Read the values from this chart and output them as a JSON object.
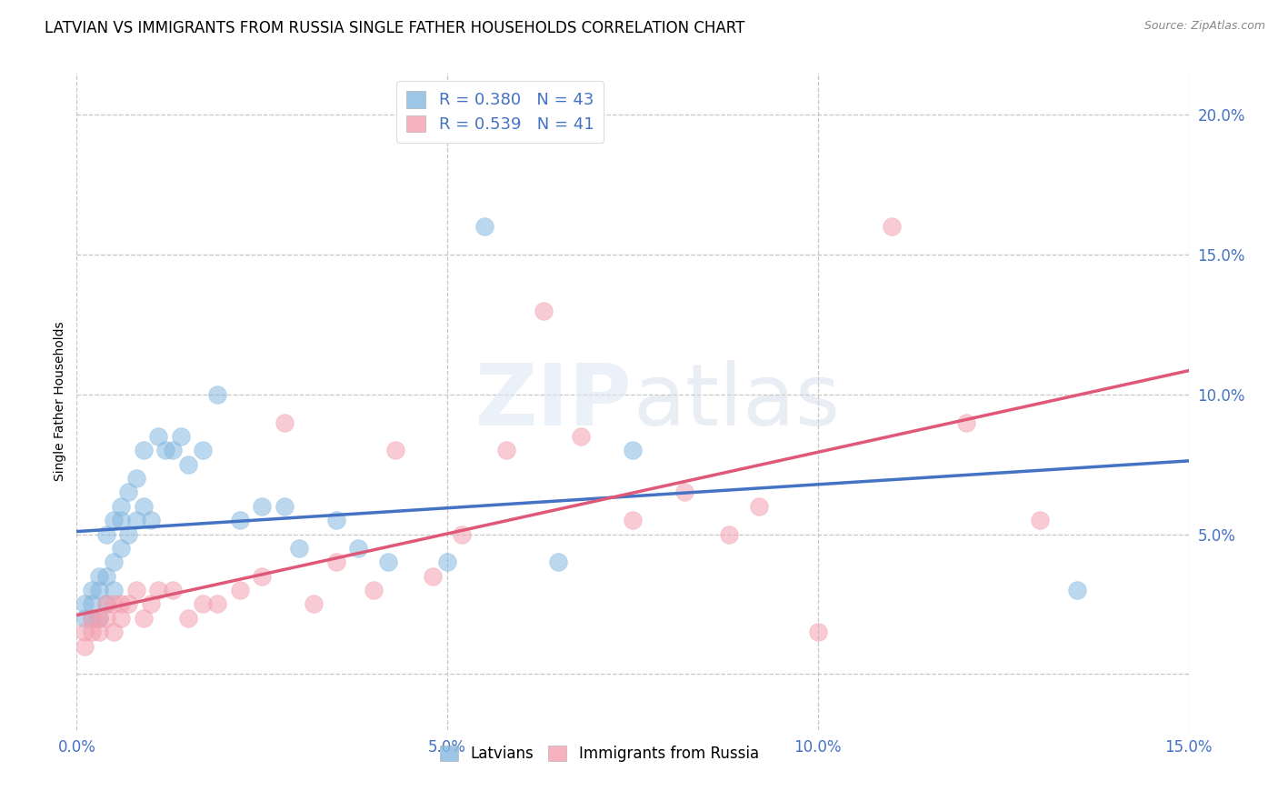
{
  "title": "LATVIAN VS IMMIGRANTS FROM RUSSIA SINGLE FATHER HOUSEHOLDS CORRELATION CHART",
  "source": "Source: ZipAtlas.com",
  "ylabel": "Single Father Households",
  "xlabel": "",
  "xlim": [
    0.0,
    0.15
  ],
  "ylim": [
    -0.02,
    0.215
  ],
  "yticks": [
    0.0,
    0.05,
    0.1,
    0.15,
    0.2
  ],
  "ytick_labels": [
    "",
    "5.0%",
    "10.0%",
    "15.0%",
    "20.0%"
  ],
  "xticks": [
    0.0,
    0.05,
    0.1,
    0.15
  ],
  "xtick_labels": [
    "0.0%",
    "5.0%",
    "10.0%",
    "15.0%"
  ],
  "latvian_color": "#85b8e0",
  "russia_color": "#f4a0b0",
  "latvian_line_color": "#4472c4",
  "russia_line_color": "#e05878",
  "legend_R_latvian": "R = 0.380",
  "legend_N_latvian": "N = 43",
  "legend_R_russia": "R = 0.539",
  "legend_N_russia": "N = 41",
  "background_color": "#ffffff",
  "grid_color": "#c0c0c0",
  "tick_color": "#4472c4",
  "title_fontsize": 12,
  "axis_label_fontsize": 10,
  "tick_fontsize": 12,
  "watermark_text": "ZIPatlas",
  "latvian_x": [
    0.001,
    0.001,
    0.002,
    0.002,
    0.002,
    0.003,
    0.003,
    0.003,
    0.004,
    0.004,
    0.004,
    0.005,
    0.005,
    0.005,
    0.006,
    0.006,
    0.006,
    0.007,
    0.007,
    0.008,
    0.008,
    0.009,
    0.009,
    0.01,
    0.011,
    0.012,
    0.013,
    0.014,
    0.015,
    0.017,
    0.019,
    0.022,
    0.025,
    0.028,
    0.03,
    0.035,
    0.038,
    0.042,
    0.05,
    0.055,
    0.065,
    0.075,
    0.135
  ],
  "latvian_y": [
    0.02,
    0.025,
    0.02,
    0.03,
    0.025,
    0.02,
    0.03,
    0.035,
    0.025,
    0.035,
    0.05,
    0.03,
    0.04,
    0.055,
    0.045,
    0.055,
    0.06,
    0.05,
    0.065,
    0.055,
    0.07,
    0.06,
    0.08,
    0.055,
    0.085,
    0.08,
    0.08,
    0.085,
    0.075,
    0.08,
    0.1,
    0.055,
    0.06,
    0.06,
    0.045,
    0.055,
    0.045,
    0.04,
    0.04,
    0.16,
    0.04,
    0.08,
    0.03
  ],
  "russia_x": [
    0.001,
    0.001,
    0.002,
    0.002,
    0.003,
    0.003,
    0.004,
    0.004,
    0.005,
    0.005,
    0.006,
    0.006,
    0.007,
    0.008,
    0.009,
    0.01,
    0.011,
    0.013,
    0.015,
    0.017,
    0.019,
    0.022,
    0.025,
    0.028,
    0.032,
    0.035,
    0.04,
    0.043,
    0.048,
    0.052,
    0.058,
    0.063,
    0.068,
    0.075,
    0.082,
    0.088,
    0.092,
    0.1,
    0.11,
    0.12,
    0.13
  ],
  "russia_y": [
    0.01,
    0.015,
    0.015,
    0.02,
    0.015,
    0.02,
    0.02,
    0.025,
    0.025,
    0.015,
    0.02,
    0.025,
    0.025,
    0.03,
    0.02,
    0.025,
    0.03,
    0.03,
    0.02,
    0.025,
    0.025,
    0.03,
    0.035,
    0.09,
    0.025,
    0.04,
    0.03,
    0.08,
    0.035,
    0.05,
    0.08,
    0.13,
    0.085,
    0.055,
    0.065,
    0.05,
    0.06,
    0.015,
    0.16,
    0.09,
    0.055
  ]
}
